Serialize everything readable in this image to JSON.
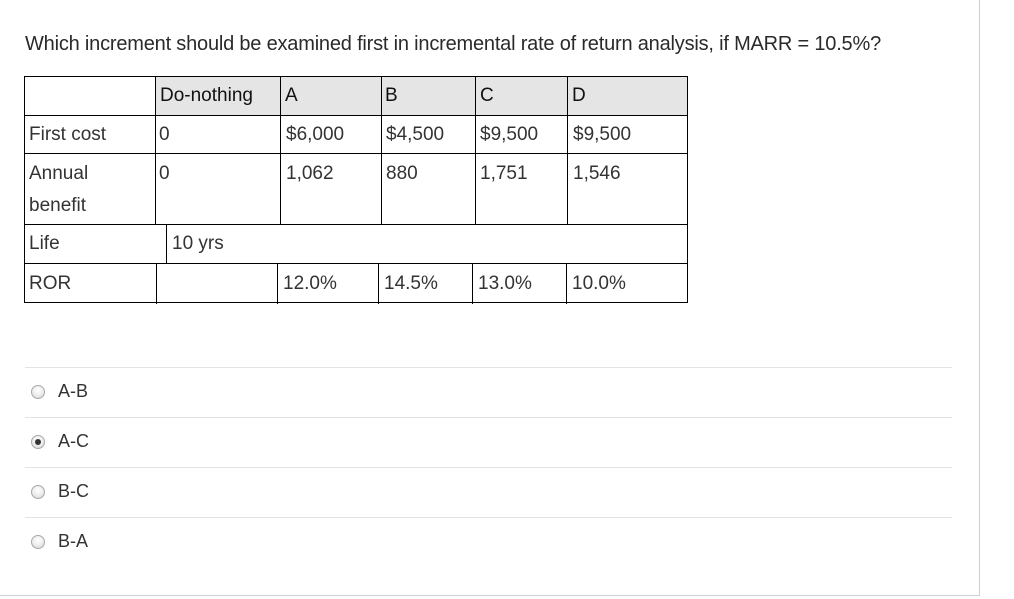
{
  "question": "Which increment should be examined first in incremental rate of return analysis, if MARR = 10.5%?",
  "table": {
    "headers": [
      "Do-nothing",
      "A",
      "B",
      "C",
      "D"
    ],
    "first_cost": {
      "label": "First cost",
      "values": [
        "0",
        "$6,000",
        "$4,500",
        "$9,500",
        "$9,500"
      ]
    },
    "annual_benefit": {
      "label_line1": "Annual",
      "label_line2": "benefit",
      "values": [
        "0",
        "1,062",
        "880",
        "1,751",
        "1,546"
      ]
    },
    "life": {
      "label": "Life",
      "value": "10 yrs"
    },
    "ror": {
      "label": "ROR",
      "values": [
        "12.0%",
        "14.5%",
        "13.0%",
        "10.0%"
      ]
    }
  },
  "choices": [
    {
      "label": "A-B",
      "selected": false
    },
    {
      "label": "A-C",
      "selected": true
    },
    {
      "label": "B-C",
      "selected": false
    },
    {
      "label": "B-A",
      "selected": false
    }
  ],
  "selected_choice": "A-C"
}
